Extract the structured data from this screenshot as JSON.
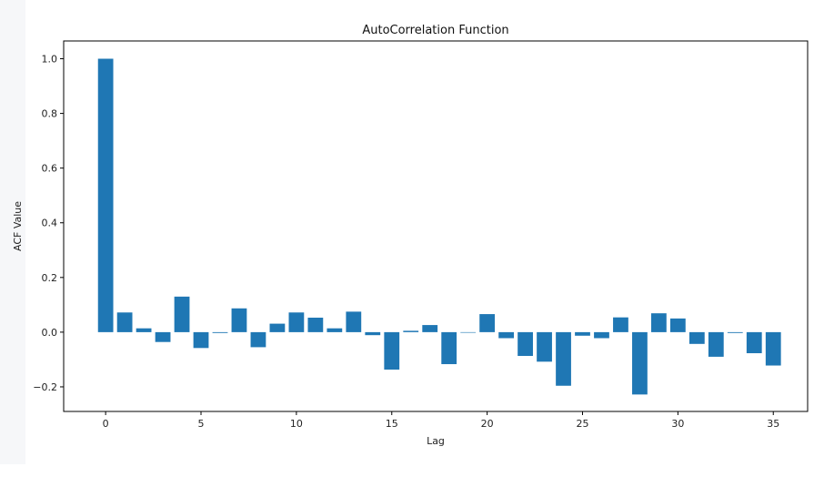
{
  "chart_data": {
    "type": "bar",
    "title": "AutoCorrelation Function",
    "xlabel": "Lag",
    "ylabel": "ACF Value",
    "xlim": [
      -2.2,
      36.8
    ],
    "ylim": [
      -0.29,
      1.065
    ],
    "xticks": [
      0,
      5,
      10,
      15,
      20,
      25,
      30,
      35
    ],
    "xtick_labels": [
      "0",
      "5",
      "10",
      "15",
      "20",
      "25",
      "30",
      "35"
    ],
    "yticks": [
      -0.2,
      0.0,
      0.2,
      0.4,
      0.6,
      0.8,
      1.0
    ],
    "ytick_labels": [
      "−0.2",
      "0.0",
      "0.2",
      "0.4",
      "0.6",
      "0.8",
      "1.0"
    ],
    "grid": false,
    "bar_color": "#1f77b4",
    "x": [
      0,
      1,
      2,
      3,
      4,
      5,
      6,
      7,
      8,
      9,
      10,
      11,
      12,
      13,
      14,
      15,
      16,
      17,
      18,
      19,
      20,
      21,
      22,
      23,
      24,
      25,
      26,
      27,
      28,
      29,
      30,
      31,
      32,
      33,
      34,
      35
    ],
    "values": [
      1.0,
      0.072,
      0.014,
      -0.036,
      0.13,
      -0.058,
      -0.003,
      0.087,
      -0.055,
      0.031,
      0.072,
      0.053,
      0.014,
      0.075,
      -0.011,
      -0.137,
      0.005,
      0.026,
      -0.117,
      0.0,
      0.066,
      -0.022,
      -0.087,
      -0.108,
      -0.196,
      -0.013,
      -0.022,
      0.054,
      -0.228,
      0.069,
      0.05,
      -0.043,
      -0.09,
      -0.003,
      -0.077,
      -0.122
    ]
  }
}
